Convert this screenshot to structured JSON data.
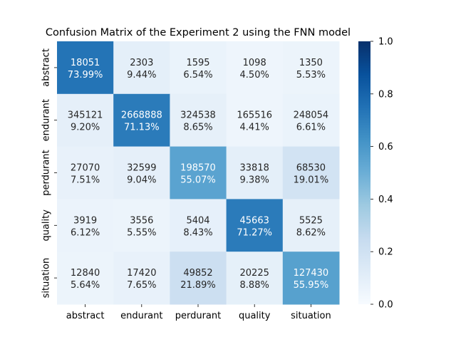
{
  "chart_data": {
    "type": "heatmap",
    "title": "Confusion Matrix of the Experiment 2 using the FNN model",
    "xlabel": "",
    "ylabel": "",
    "x_categories": [
      "abstract",
      "endurant",
      "perdurant",
      "quality",
      "situation"
    ],
    "y_categories": [
      "abstract",
      "endurant",
      "perdurant",
      "quality",
      "situation"
    ],
    "counts": [
      [
        "18051",
        "2303",
        "1595",
        "1098",
        "1350"
      ],
      [
        "345121",
        "2668888",
        "324538",
        "165516",
        "248054"
      ],
      [
        "27070",
        "32599",
        "198570",
        "33818",
        "68530"
      ],
      [
        "3919",
        "3556",
        "5404",
        "45663",
        "5525"
      ],
      [
        "12840",
        "17420",
        "49852",
        "20225",
        "127430"
      ]
    ],
    "percents": [
      [
        "73.99%",
        "9.44%",
        "6.54%",
        "4.50%",
        "5.53%"
      ],
      [
        "9.20%",
        "71.13%",
        "8.65%",
        "4.41%",
        "6.61%"
      ],
      [
        "7.51%",
        "9.04%",
        "55.07%",
        "9.38%",
        "19.01%"
      ],
      [
        "6.12%",
        "5.55%",
        "8.43%",
        "71.27%",
        "8.62%"
      ],
      [
        "5.64%",
        "7.65%",
        "21.89%",
        "8.88%",
        "55.95%"
      ]
    ],
    "values": [
      [
        0.7399,
        0.0944,
        0.0654,
        0.045,
        0.0553
      ],
      [
        0.092,
        0.7113,
        0.0865,
        0.0441,
        0.0661
      ],
      [
        0.0751,
        0.0904,
        0.5507,
        0.0938,
        0.1901
      ],
      [
        0.0612,
        0.0555,
        0.0843,
        0.7127,
        0.0862
      ],
      [
        0.0564,
        0.0765,
        0.2189,
        0.0888,
        0.5595
      ]
    ],
    "colorbar": {
      "range": [
        0.0,
        1.0
      ],
      "ticks": [
        "0.0",
        "0.2",
        "0.4",
        "0.6",
        "0.8",
        "1.0"
      ],
      "colormap": "Blues"
    },
    "grid": false,
    "legend": "none"
  }
}
